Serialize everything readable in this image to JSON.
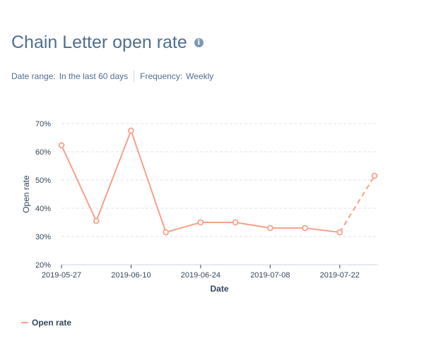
{
  "header": {
    "title": "Chain Letter open rate",
    "info_icon": "info-icon"
  },
  "filters": {
    "date_range_label": "Date range:",
    "date_range_value": "In the last 60 days",
    "frequency_label": "Frequency:",
    "frequency_value": "Weekly"
  },
  "legend": {
    "label": "Open rate"
  },
  "chart_data": {
    "type": "line",
    "title": "Chain Letter open rate",
    "xlabel": "Date",
    "ylabel": "Open rate",
    "ylim": [
      20,
      70
    ],
    "yticks": [
      "20%",
      "30%",
      "40%",
      "50%",
      "60%",
      "70%"
    ],
    "xticks": [
      "2019-05-27",
      "2019-06-10",
      "2019-06-24",
      "2019-07-08",
      "2019-07-22"
    ],
    "x": [
      "2019-05-27",
      "2019-06-03",
      "2019-06-10",
      "2019-06-17",
      "2019-06-24",
      "2019-07-01",
      "2019-07-08",
      "2019-07-15",
      "2019-07-22",
      "2019-07-29"
    ],
    "series": [
      {
        "name": "Open rate",
        "values": [
          62.3,
          35.5,
          67.5,
          31.5,
          35.0,
          35.0,
          33.0,
          33.0,
          31.5,
          51.5
        ],
        "partial_last_period": true
      }
    ],
    "grid": true,
    "color": "#f8a08a"
  }
}
